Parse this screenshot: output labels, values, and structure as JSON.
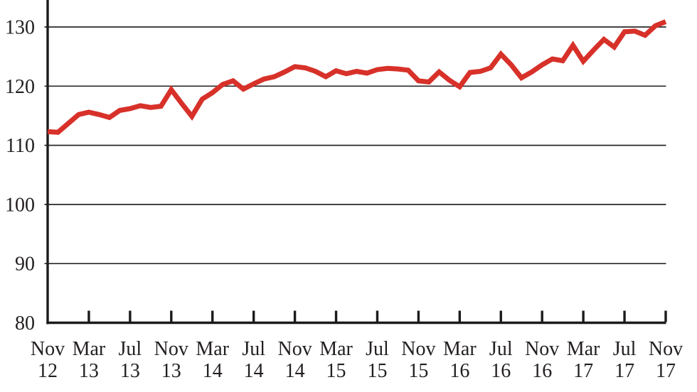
{
  "chart_data": {
    "type": "line",
    "title": "",
    "xlabel": "",
    "ylabel": "",
    "x": [
      "Nov 12",
      "Dec 12",
      "Jan 13",
      "Feb 13",
      "Mar 13",
      "Apr 13",
      "May 13",
      "Jun 13",
      "Jul 13",
      "Aug 13",
      "Sep 13",
      "Oct 13",
      "Nov 13",
      "Dec 13",
      "Jan 14",
      "Feb 14",
      "Mar 14",
      "Apr 14",
      "May 14",
      "Jun 14",
      "Jul 14",
      "Aug 14",
      "Sep 14",
      "Oct 14",
      "Nov 14",
      "Dec 14",
      "Jan 15",
      "Feb 15",
      "Mar 15",
      "Apr 15",
      "May 15",
      "Jun 15",
      "Jul 15",
      "Aug 15",
      "Sep 15",
      "Oct 15",
      "Nov 15",
      "Dec 15",
      "Jan 16",
      "Feb 16",
      "Mar 16",
      "Apr 16",
      "May 16",
      "Jun 16",
      "Jul 16",
      "Aug 16",
      "Sep 16",
      "Oct 16",
      "Nov 16",
      "Dec 16",
      "Jan 17",
      "Feb 17",
      "Mar 17",
      "Apr 17",
      "May 17",
      "Jun 17",
      "Jul 17",
      "Aug 17",
      "Sep 17",
      "Oct 17",
      "Nov 17"
    ],
    "series": [
      {
        "name": "index-line",
        "color": "#d7312a",
        "values": [
          112.3,
          112.2,
          113.7,
          115.2,
          115.6,
          115.2,
          114.7,
          115.9,
          116.2,
          116.7,
          116.4,
          116.6,
          119.4,
          117.1,
          114.9,
          117.8,
          118.9,
          120.3,
          120.9,
          119.5,
          120.4,
          121.2,
          121.6,
          122.4,
          123.3,
          123.1,
          122.5,
          121.6,
          122.6,
          122.1,
          122.5,
          122.2,
          122.8,
          123.0,
          122.9,
          122.7,
          120.9,
          120.7,
          122.4,
          121.0,
          119.9,
          122.3,
          122.5,
          123.1,
          125.4,
          123.6,
          121.4,
          122.4,
          123.6,
          124.6,
          124.3,
          126.9,
          124.2,
          126.1,
          127.9,
          126.6,
          129.2,
          129.3,
          128.6,
          130.2,
          130.9
        ]
      }
    ],
    "ylim": [
      80,
      133.5
    ],
    "yticks": [
      80,
      90,
      100,
      110,
      120,
      130
    ],
    "x_tick_every": 4,
    "x_tick_labels": [
      {
        "month": "Nov",
        "year": "12"
      },
      {
        "month": "Mar",
        "year": "13"
      },
      {
        "month": "Jul",
        "year": "13"
      },
      {
        "month": "Nov",
        "year": "13"
      },
      {
        "month": "Mar",
        "year": "14"
      },
      {
        "month": "Jul",
        "year": "14"
      },
      {
        "month": "Nov",
        "year": "14"
      },
      {
        "month": "Mar",
        "year": "15"
      },
      {
        "month": "Jul",
        "year": "15"
      },
      {
        "month": "Nov",
        "year": "15"
      },
      {
        "month": "Mar",
        "year": "16"
      },
      {
        "month": "Jul",
        "year": "16"
      },
      {
        "month": "Nov",
        "year": "16"
      },
      {
        "month": "Mar",
        "year": "17"
      },
      {
        "month": "Jul",
        "year": "17"
      },
      {
        "month": "Nov",
        "year": "17"
      }
    ],
    "grid": true,
    "legend": false
  },
  "style": {
    "line_color": "#d7312a",
    "grid_color": "#2b2728",
    "axis_color": "#1d1a1b",
    "text_color": "#231f20",
    "background": "#ffffff"
  }
}
